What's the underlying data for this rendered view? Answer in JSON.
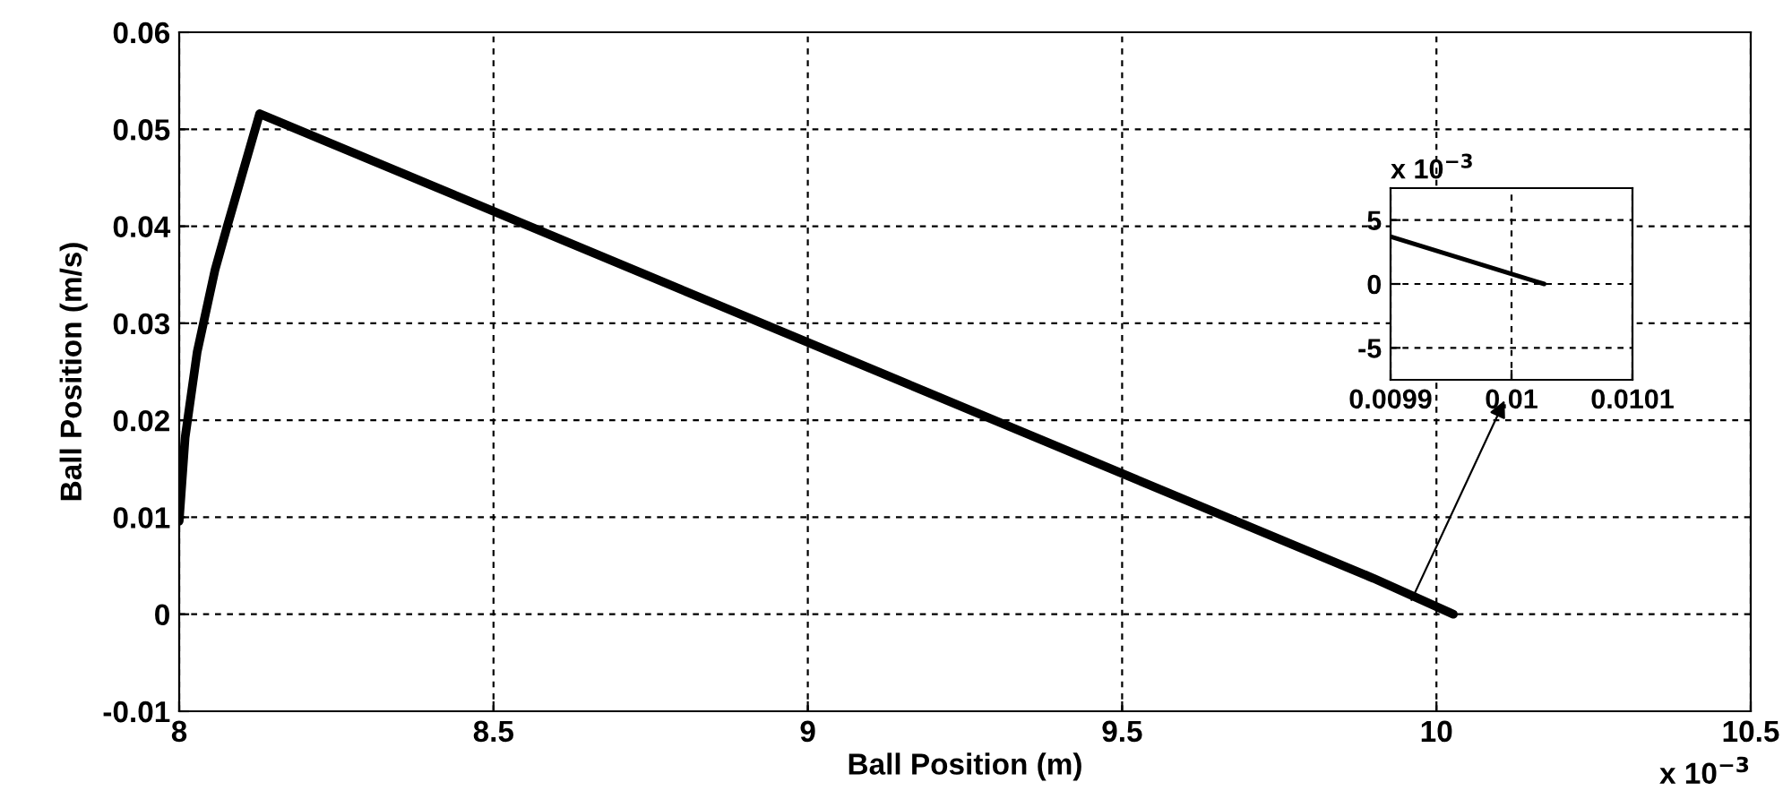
{
  "chart_data": [
    {
      "type": "line",
      "xlabel": "Ball Position (m)",
      "ylabel": "Ball Position (m/s)",
      "x": [
        8.0,
        8.0094,
        8.0285,
        8.057,
        8.076,
        8.128,
        9.9,
        10.02,
        10.027
      ],
      "series": [
        {
          "color": "#000000",
          "values": [
            0.0096,
            0.0182,
            0.027,
            0.0355,
            0.0399,
            0.0516,
            0.0037,
            0.0002,
            0.0
          ]
        }
      ],
      "xlim": [
        8,
        10.5
      ],
      "xticks": [
        8,
        8.5,
        9,
        9.5,
        10,
        10.5
      ],
      "ylim": [
        -0.01,
        0.06
      ],
      "yticks": [
        -0.01,
        0,
        0.01,
        0.02,
        0.03,
        0.04,
        0.05,
        0.06
      ],
      "grid": true,
      "line_style": "solid",
      "marker": "none",
      "annotations": [
        "x 10$^{−3}$"
      ]
    },
    {
      "type": "line",
      "x": [
        0.0099,
        0.01002,
        0.010027
      ],
      "series": [
        {
          "color": "#000000",
          "values": [
            3.7,
            0.2,
            0.0
          ]
        }
      ],
      "xlim": [
        0.0099,
        0.0101
      ],
      "xticks": [
        0.0099,
        0.01,
        0.0101
      ],
      "ylim": [
        -7.5,
        7.5
      ],
      "yticks": [
        -5,
        0,
        5
      ],
      "grid": true,
      "line_style": "solid",
      "marker": "none",
      "annotations": [
        "x 10$^{−3}$"
      ]
    }
  ]
}
